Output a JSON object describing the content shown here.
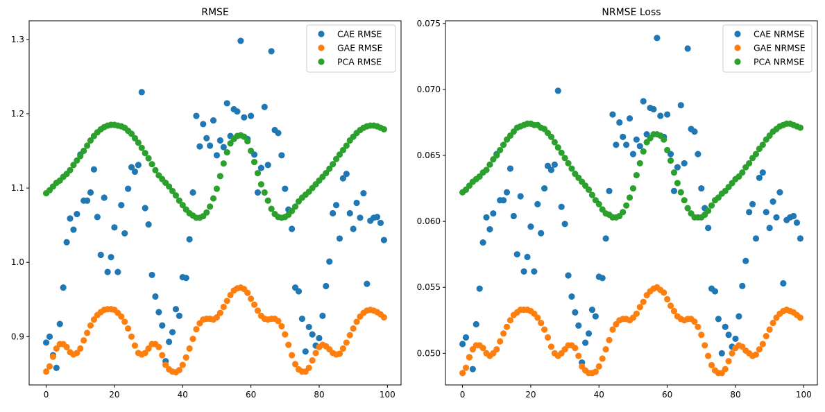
{
  "colors": {
    "cae": "#1f77b4",
    "gae": "#ff7f0e",
    "pca": "#2ca02c",
    "axis": "#000000",
    "legend_border": "#cccccc"
  },
  "chart_data": [
    {
      "type": "scatter",
      "title": "RMSE",
      "xlabel": "",
      "ylabel": "",
      "xlim": [
        -5,
        104
      ],
      "ylim": [
        0.835,
        1.325
      ],
      "xticks": [
        0,
        20,
        40,
        60,
        80,
        100
      ],
      "xtick_labels": [
        "0",
        "20",
        "40",
        "60",
        "80",
        "100"
      ],
      "yticks": [
        0.9,
        1.0,
        1.1,
        1.2,
        1.3
      ],
      "ytick_labels": [
        "0.9",
        "1.0",
        "1.1",
        "1.2",
        "1.3"
      ],
      "grid": false,
      "legend_position": "top-right",
      "x": [
        0,
        1,
        2,
        3,
        4,
        5,
        6,
        7,
        8,
        9,
        10,
        11,
        12,
        13,
        14,
        15,
        16,
        17,
        18,
        19,
        20,
        21,
        22,
        23,
        24,
        25,
        26,
        27,
        28,
        29,
        30,
        31,
        32,
        33,
        34,
        35,
        36,
        37,
        38,
        39,
        40,
        41,
        42,
        43,
        44,
        45,
        46,
        47,
        48,
        49,
        50,
        51,
        52,
        53,
        54,
        55,
        56,
        57,
        58,
        59,
        60,
        61,
        62,
        63,
        64,
        65,
        66,
        67,
        68,
        69,
        70,
        71,
        72,
        73,
        74,
        75,
        76,
        77,
        78,
        79,
        80,
        81,
        82,
        83,
        84,
        85,
        86,
        87,
        88,
        89,
        90,
        91,
        92,
        93,
        94,
        95,
        96,
        97,
        98,
        99
      ],
      "series": [
        {
          "name": "CAE RMSE",
          "color_key": "cae",
          "values": [
            0.892,
            0.9,
            0.875,
            0.858,
            0.917,
            0.966,
            1.027,
            1.059,
            1.044,
            1.065,
            1.145,
            1.083,
            1.083,
            1.094,
            1.125,
            1.061,
            1.01,
            1.087,
            0.987,
            1.007,
            1.047,
            0.987,
            1.077,
            1.039,
            1.099,
            1.128,
            1.122,
            1.131,
            1.229,
            1.073,
            1.051,
            0.983,
            0.954,
            0.933,
            0.915,
            0.867,
            0.893,
            0.906,
            0.937,
            0.928,
            0.98,
            0.979,
            1.031,
            1.094,
            1.197,
            1.156,
            1.186,
            1.167,
            1.157,
            1.191,
            1.144,
            1.164,
            1.155,
            1.214,
            1.17,
            1.206,
            1.203,
            1.298,
            1.195,
            1.166,
            1.197,
            1.145,
            1.094,
            1.127,
            1.209,
            1.131,
            1.284,
            1.178,
            1.174,
            1.144,
            1.099,
            1.071,
            1.045,
            0.966,
            0.961,
            0.924,
            0.88,
            0.913,
            0.903,
            0.888,
            0.898,
            0.928,
            0.968,
            1.001,
            1.066,
            1.077,
            1.032,
            1.113,
            1.119,
            1.066,
            1.045,
            1.08,
            1.06,
            1.093,
            0.971,
            1.056,
            1.06,
            1.061,
            1.053,
            1.03
          ]
        },
        {
          "name": "GAE RMSE",
          "color_key": "gae",
          "values": [
            0.853,
            0.86,
            0.873,
            0.884,
            0.89,
            0.89,
            0.886,
            0.879,
            0.876,
            0.878,
            0.884,
            0.895,
            0.905,
            0.915,
            0.923,
            0.929,
            0.933,
            0.936,
            0.937,
            0.937,
            0.936,
            0.932,
            0.927,
            0.92,
            0.911,
            0.9,
            0.888,
            0.878,
            0.876,
            0.878,
            0.884,
            0.89,
            0.89,
            0.886,
            0.875,
            0.862,
            0.856,
            0.853,
            0.852,
            0.855,
            0.862,
            0.872,
            0.884,
            0.897,
            0.91,
            0.918,
            0.923,
            0.924,
            0.924,
            0.923,
            0.926,
            0.932,
            0.94,
            0.948,
            0.956,
            0.962,
            0.965,
            0.966,
            0.964,
            0.959,
            0.951,
            0.943,
            0.935,
            0.928,
            0.924,
            0.923,
            0.924,
            0.924,
            0.921,
            0.914,
            0.903,
            0.889,
            0.875,
            0.863,
            0.856,
            0.853,
            0.853,
            0.858,
            0.868,
            0.878,
            0.886,
            0.889,
            0.887,
            0.883,
            0.878,
            0.876,
            0.877,
            0.884,
            0.892,
            0.902,
            0.911,
            0.92,
            0.927,
            0.932,
            0.935,
            0.936,
            0.935,
            0.933,
            0.93,
            0.926
          ]
        },
        {
          "name": "PCA RMSE",
          "color_key": "pca",
          "values": [
            1.093,
            1.097,
            1.102,
            1.107,
            1.11,
            1.115,
            1.119,
            1.124,
            1.131,
            1.137,
            1.143,
            1.15,
            1.157,
            1.164,
            1.17,
            1.175,
            1.179,
            1.182,
            1.184,
            1.185,
            1.185,
            1.184,
            1.183,
            1.181,
            1.177,
            1.173,
            1.167,
            1.161,
            1.154,
            1.147,
            1.14,
            1.132,
            1.124,
            1.117,
            1.112,
            1.107,
            1.102,
            1.096,
            1.09,
            1.083,
            1.077,
            1.071,
            1.066,
            1.063,
            1.06,
            1.06,
            1.062,
            1.067,
            1.075,
            1.086,
            1.099,
            1.116,
            1.133,
            1.148,
            1.16,
            1.166,
            1.17,
            1.171,
            1.169,
            1.163,
            1.15,
            1.135,
            1.12,
            1.105,
            1.094,
            1.083,
            1.072,
            1.065,
            1.061,
            1.06,
            1.061,
            1.064,
            1.069,
            1.075,
            1.082,
            1.087,
            1.091,
            1.095,
            1.1,
            1.105,
            1.11,
            1.115,
            1.12,
            1.126,
            1.132,
            1.139,
            1.145,
            1.151,
            1.157,
            1.164,
            1.169,
            1.174,
            1.178,
            1.181,
            1.183,
            1.184,
            1.184,
            1.183,
            1.181,
            1.179
          ]
        }
      ]
    },
    {
      "type": "scatter",
      "title": "NRMSE Loss",
      "xlabel": "",
      "ylabel": "",
      "xlim": [
        -5,
        104
      ],
      "ylim": [
        0.0476,
        0.0752
      ],
      "xticks": [
        0,
        20,
        40,
        60,
        80,
        100
      ],
      "xtick_labels": [
        "0",
        "20",
        "40",
        "60",
        "80",
        "100"
      ],
      "yticks": [
        0.05,
        0.055,
        0.06,
        0.065,
        0.07,
        0.075
      ],
      "ytick_labels": [
        "0.050",
        "0.055",
        "0.060",
        "0.065",
        "0.070",
        "0.075"
      ],
      "grid": false,
      "legend_position": "top-right",
      "x": [
        0,
        1,
        2,
        3,
        4,
        5,
        6,
        7,
        8,
        9,
        10,
        11,
        12,
        13,
        14,
        15,
        16,
        17,
        18,
        19,
        20,
        21,
        22,
        23,
        24,
        25,
        26,
        27,
        28,
        29,
        30,
        31,
        32,
        33,
        34,
        35,
        36,
        37,
        38,
        39,
        40,
        41,
        42,
        43,
        44,
        45,
        46,
        47,
        48,
        49,
        50,
        51,
        52,
        53,
        54,
        55,
        56,
        57,
        58,
        59,
        60,
        61,
        62,
        63,
        64,
        65,
        66,
        67,
        68,
        69,
        70,
        71,
        72,
        73,
        74,
        75,
        76,
        77,
        78,
        79,
        80,
        81,
        82,
        83,
        84,
        85,
        86,
        87,
        88,
        89,
        90,
        91,
        92,
        93,
        94,
        95,
        96,
        97,
        98,
        99
      ],
      "series": [
        {
          "name": "CAE NRMSE",
          "color_key": "cae",
          "values": [
            0.0507,
            0.0512,
            0.0497,
            0.0488,
            0.0522,
            0.0549,
            0.0584,
            0.0603,
            0.0594,
            0.0606,
            0.0651,
            0.0616,
            0.0616,
            0.0622,
            0.064,
            0.0604,
            0.0575,
            0.0619,
            0.0562,
            0.0573,
            0.0596,
            0.0562,
            0.0613,
            0.0591,
            0.0625,
            0.0642,
            0.0639,
            0.0643,
            0.0699,
            0.0611,
            0.0598,
            0.0559,
            0.0543,
            0.0531,
            0.0521,
            0.0493,
            0.0508,
            0.0515,
            0.0533,
            0.0528,
            0.0558,
            0.0557,
            0.0587,
            0.0623,
            0.0681,
            0.0658,
            0.0675,
            0.0664,
            0.0658,
            0.0678,
            0.0651,
            0.0662,
            0.0657,
            0.0691,
            0.0666,
            0.0686,
            0.0685,
            0.0739,
            0.068,
            0.0664,
            0.0681,
            0.0651,
            0.0623,
            0.0641,
            0.0688,
            0.0644,
            0.0731,
            0.067,
            0.0668,
            0.0651,
            0.0625,
            0.061,
            0.0595,
            0.0549,
            0.0547,
            0.0526,
            0.05,
            0.052,
            0.0514,
            0.0505,
            0.0511,
            0.0528,
            0.0551,
            0.057,
            0.0607,
            0.0613,
            0.0587,
            0.0633,
            0.0637,
            0.0607,
            0.0595,
            0.0615,
            0.0603,
            0.0622,
            0.0553,
            0.0601,
            0.0603,
            0.0604,
            0.0599,
            0.0587
          ]
        },
        {
          "name": "GAE NRMSE",
          "color_key": "gae",
          "values": [
            0.0485,
            0.0489,
            0.0497,
            0.0503,
            0.0506,
            0.0506,
            0.0504,
            0.05,
            0.0498,
            0.05,
            0.0503,
            0.0509,
            0.0515,
            0.052,
            0.0525,
            0.0529,
            0.0531,
            0.0533,
            0.0533,
            0.0533,
            0.0532,
            0.053,
            0.0527,
            0.0523,
            0.0518,
            0.0512,
            0.0505,
            0.05,
            0.0498,
            0.05,
            0.0503,
            0.0506,
            0.0506,
            0.0504,
            0.0498,
            0.049,
            0.0487,
            0.0485,
            0.0485,
            0.0486,
            0.049,
            0.0496,
            0.0503,
            0.051,
            0.0518,
            0.0522,
            0.0525,
            0.0526,
            0.0526,
            0.0525,
            0.0527,
            0.053,
            0.0535,
            0.0539,
            0.0544,
            0.0547,
            0.0549,
            0.055,
            0.0548,
            0.0546,
            0.0541,
            0.0536,
            0.0532,
            0.0528,
            0.0526,
            0.0525,
            0.0526,
            0.0526,
            0.0524,
            0.052,
            0.0514,
            0.0506,
            0.0498,
            0.0491,
            0.0487,
            0.0485,
            0.0485,
            0.0488,
            0.0494,
            0.05,
            0.0504,
            0.0506,
            0.0505,
            0.0502,
            0.05,
            0.0498,
            0.0499,
            0.0503,
            0.0507,
            0.0513,
            0.0518,
            0.0523,
            0.0527,
            0.053,
            0.0532,
            0.0533,
            0.0532,
            0.0531,
            0.0529,
            0.0527
          ]
        },
        {
          "name": "PCA NRMSE",
          "color_key": "pca",
          "values": [
            0.0622,
            0.0624,
            0.0627,
            0.063,
            0.0632,
            0.0634,
            0.0637,
            0.0639,
            0.0643,
            0.0647,
            0.065,
            0.0654,
            0.0658,
            0.0662,
            0.0665,
            0.0668,
            0.0671,
            0.0672,
            0.0673,
            0.0674,
            0.0674,
            0.0673,
            0.0673,
            0.0671,
            0.067,
            0.0667,
            0.0664,
            0.066,
            0.0656,
            0.0652,
            0.0648,
            0.0644,
            0.064,
            0.0636,
            0.0633,
            0.063,
            0.0627,
            0.0624,
            0.062,
            0.0616,
            0.0613,
            0.0609,
            0.0606,
            0.0605,
            0.0603,
            0.0603,
            0.0604,
            0.0607,
            0.0612,
            0.0618,
            0.0625,
            0.0635,
            0.0644,
            0.0653,
            0.066,
            0.0663,
            0.0666,
            0.0666,
            0.0665,
            0.0662,
            0.0654,
            0.0646,
            0.0637,
            0.0629,
            0.0622,
            0.0616,
            0.061,
            0.0606,
            0.0603,
            0.0603,
            0.0603,
            0.0605,
            0.0608,
            0.0612,
            0.0616,
            0.0618,
            0.0621,
            0.0623,
            0.0626,
            0.0629,
            0.0632,
            0.0634,
            0.0637,
            0.0641,
            0.0644,
            0.0648,
            0.0651,
            0.0655,
            0.0658,
            0.0662,
            0.0665,
            0.0668,
            0.067,
            0.0672,
            0.0673,
            0.0674,
            0.0674,
            0.0673,
            0.0672,
            0.0671
          ]
        }
      ]
    }
  ]
}
